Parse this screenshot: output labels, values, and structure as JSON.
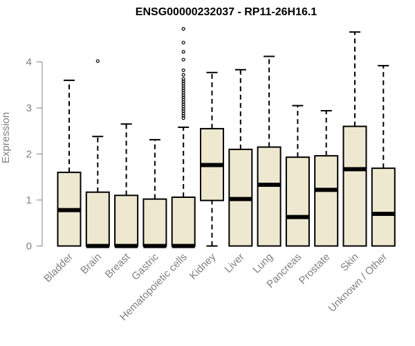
{
  "chart_data": {
    "type": "boxplot",
    "title": "ENSG00000232037 - RP11-26H16.1",
    "ylabel": "Expression",
    "xlabel": "",
    "ylim": [
      0,
      4.75
    ],
    "yticks": [
      0,
      1,
      2,
      3,
      4
    ],
    "grid": false,
    "legend": "none",
    "box_fill": "#EEE8D0",
    "box_stroke": "#000000",
    "axis_color": "#808080",
    "categories": [
      "Bladder",
      "Brain",
      "Breast",
      "Gastric",
      "Hematopoietic cells",
      "Kidney",
      "Liver",
      "Lung",
      "Pancreas",
      "Prostate",
      "Skin",
      "Unknown / Other"
    ],
    "boxes": [
      {
        "min": 0,
        "q1": 0,
        "median": 0.78,
        "q3": 1.6,
        "max": 3.6,
        "outliers": []
      },
      {
        "min": 0,
        "q1": 0,
        "median": 0,
        "q3": 1.17,
        "max": 2.38,
        "outliers": [
          4.02
        ]
      },
      {
        "min": 0,
        "q1": 0,
        "median": 0,
        "q3": 1.1,
        "max": 2.65,
        "outliers": []
      },
      {
        "min": 0,
        "q1": 0,
        "median": 0,
        "q3": 1.02,
        "max": 2.31,
        "outliers": []
      },
      {
        "min": 0,
        "q1": 0,
        "median": 0,
        "q3": 1.06,
        "max": 2.58,
        "outliers": [
          2.78,
          2.83,
          2.88,
          2.93,
          2.98,
          3.03,
          3.08,
          3.13,
          3.18,
          3.23,
          3.28,
          3.33,
          3.38,
          3.43,
          3.48,
          3.53,
          3.58,
          3.63,
          3.72,
          3.82,
          4.05,
          4.22,
          4.42,
          4.72
        ]
      },
      {
        "min": 0,
        "q1": 0.99,
        "median": 1.76,
        "q3": 2.55,
        "max": 3.77,
        "outliers": []
      },
      {
        "min": 0,
        "q1": 0,
        "median": 1.02,
        "q3": 2.1,
        "max": 3.83,
        "outliers": []
      },
      {
        "min": 0,
        "q1": 0,
        "median": 1.33,
        "q3": 2.15,
        "max": 4.12,
        "outliers": []
      },
      {
        "min": 0,
        "q1": 0,
        "median": 0.63,
        "q3": 1.93,
        "max": 3.05,
        "outliers": []
      },
      {
        "min": 0,
        "q1": 0,
        "median": 1.22,
        "q3": 1.96,
        "max": 2.94,
        "outliers": []
      },
      {
        "min": 0,
        "q1": 0,
        "median": 1.67,
        "q3": 2.6,
        "max": 4.65,
        "outliers": []
      },
      {
        "min": 0,
        "q1": 0,
        "median": 0.7,
        "q3": 1.69,
        "max": 3.92,
        "outliers": []
      }
    ]
  }
}
